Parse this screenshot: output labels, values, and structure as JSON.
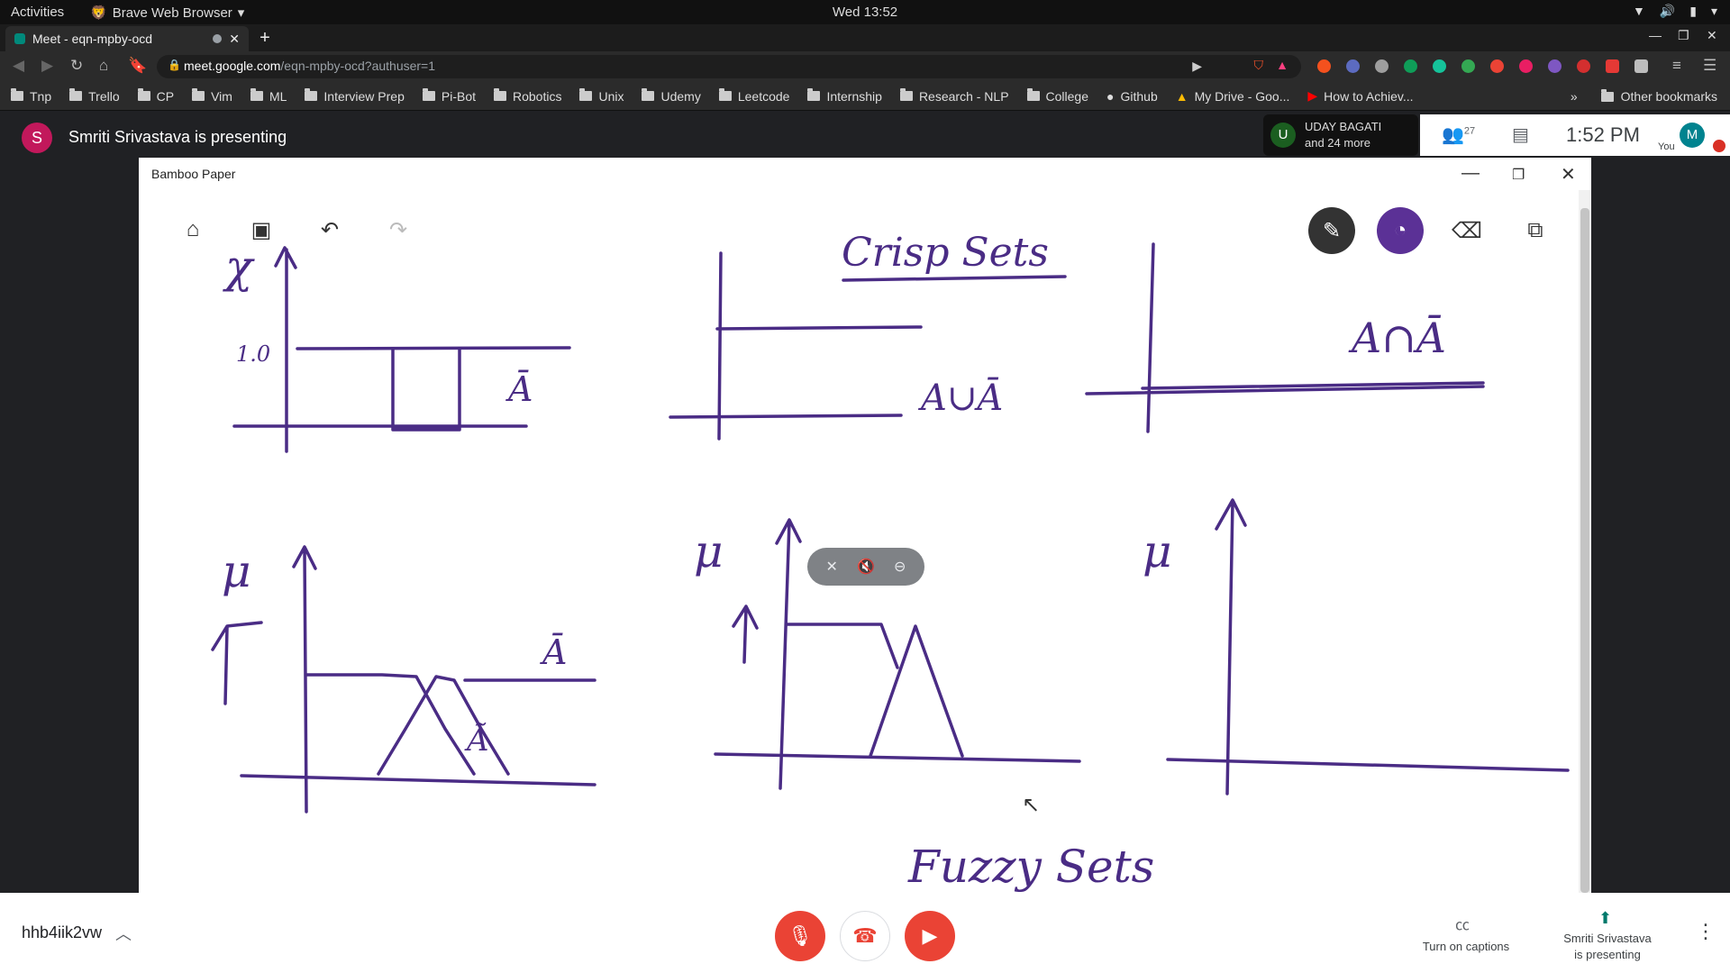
{
  "topbar": {
    "activities": "Activities",
    "app_name": "Brave Web Browser",
    "clock": "Wed 13:52"
  },
  "browser": {
    "tab_title": "Meet - eqn-mpby-ocd",
    "new_tab": "+",
    "url_host": "meet.google.com",
    "url_path": "/eqn-mpby-ocd?authuser=1",
    "bookmarks": [
      "Tnp",
      "Trello",
      "CP",
      "Vim",
      "ML",
      "Interview Prep",
      "Pi-Bot",
      "Robotics",
      "Unix",
      "Udemy",
      "Leetcode",
      "Internship",
      "Research - NLP",
      "College"
    ],
    "bookmark_links": [
      "Github",
      "My Drive - Goo...",
      "How to Achiev..."
    ],
    "more": "»",
    "other_bookmarks": "Other bookmarks",
    "extension_colors": [
      "#f4511e",
      "#5c6bc0",
      "#9e9e9e",
      "#0f9d58",
      "#1a73e8",
      "#34a853",
      "#ea4335",
      "#e91e63",
      "#7e57c2",
      "#d32f2f",
      "#e53935",
      "#bdbdbd"
    ]
  },
  "meet": {
    "presenter_initial": "S",
    "presenting_text": "Smriti Srivastava is presenting",
    "participant_initial": "U",
    "participant_name": "UDAY BAGATI",
    "participant_more": "and 24 more",
    "participant_count": "27",
    "time": "1:52 PM",
    "you_initial": "M",
    "you_label": "You",
    "meeting_code": "hhb4iik2vw",
    "captions_label": "Turn on captions",
    "presenting_label_1": "Smriti Srivastava",
    "presenting_label_2": "is presenting"
  },
  "shared_window": {
    "title": "Bamboo Paper",
    "heading_top": "Crisp Sets",
    "heading_bottom": "Fuzzy Sets",
    "labels": {
      "chi": "χ",
      "one": "1.0",
      "a_bar": "Ā",
      "union": "A∪Ā",
      "intersect": "A∩Ā",
      "mu": "μ",
      "a_tilde": "Ã"
    },
    "ink_color": "#4a2c85"
  }
}
